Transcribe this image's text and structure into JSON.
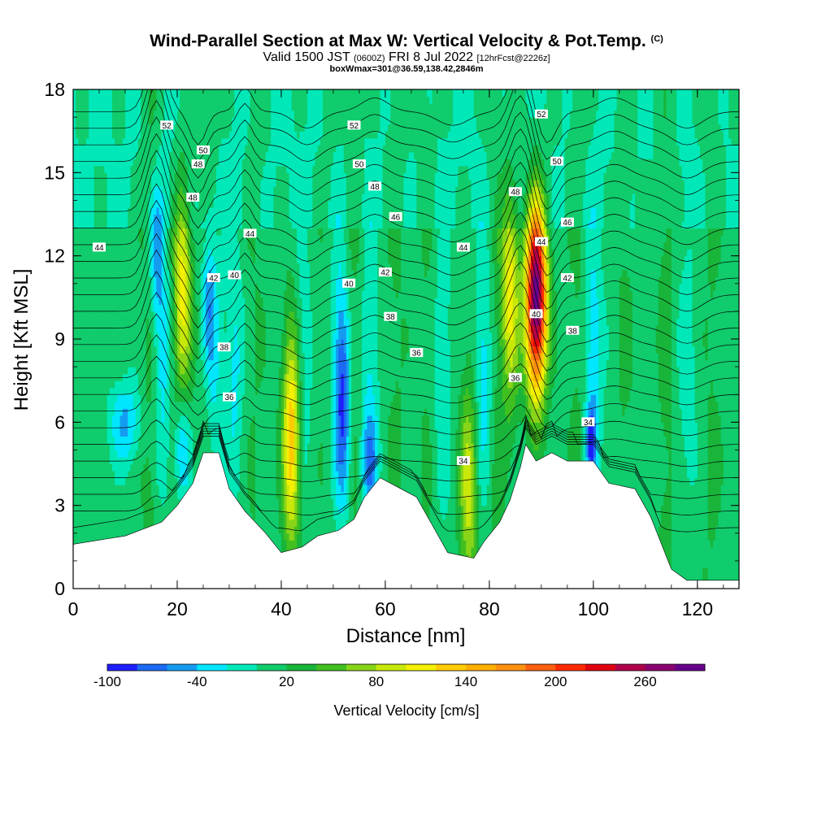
{
  "title": {
    "main": "Wind-Parallel Section at Max W: Vertical Velocity & Pot.Temp.",
    "copyright": "(C)",
    "valid_prefix": "Valid 1500 JST",
    "valid_utc": "(0600Z)",
    "valid_date": "FRI 8 Jul 2022",
    "forecast": "[12hrFcst@2226z]",
    "box": "boxWmax=301@36.59,138.42,2846m"
  },
  "chart_data": {
    "type": "heatmap",
    "xlabel": "Distance [nm]",
    "ylabel": "Height [Kft MSL]",
    "xlim": [
      0,
      128
    ],
    "ylim": [
      0,
      18
    ],
    "x_ticks": [
      0,
      20,
      40,
      60,
      80,
      100,
      120
    ],
    "y_ticks": [
      0,
      3,
      6,
      9,
      12,
      15,
      18
    ],
    "colorbar": {
      "label": "Vertical Velocity [cm/s]",
      "tick_labels": [
        "-100",
        "-40",
        "20",
        "80",
        "140",
        "200",
        "260"
      ],
      "tick_values": [
        -100,
        -40,
        20,
        80,
        140,
        200,
        260
      ],
      "colors": [
        "#1f1fff",
        "#1c6bf5",
        "#159cf0",
        "#00e6ff",
        "#00e8b8",
        "#10cc6c",
        "#18b53a",
        "#40c020",
        "#88d418",
        "#c8e80a",
        "#f4f000",
        "#ffcc00",
        "#ffb000",
        "#ff9010",
        "#ff6010",
        "#ff2a00",
        "#e00010",
        "#b0004a",
        "#8c0070",
        "#68008c"
      ]
    },
    "terrain": [
      [
        0,
        1.6
      ],
      [
        10,
        1.9
      ],
      [
        17,
        2.4
      ],
      [
        20,
        3.0
      ],
      [
        23,
        3.8
      ],
      [
        25,
        4.9
      ],
      [
        28,
        4.9
      ],
      [
        30,
        3.6
      ],
      [
        33,
        2.8
      ],
      [
        37,
        2.0
      ],
      [
        40,
        1.3
      ],
      [
        44,
        1.5
      ],
      [
        47,
        1.9
      ],
      [
        51,
        2.1
      ],
      [
        54,
        2.5
      ],
      [
        56,
        3.3
      ],
      [
        59,
        4.0
      ],
      [
        63,
        3.6
      ],
      [
        66,
        3.3
      ],
      [
        69,
        2.3
      ],
      [
        72,
        1.3
      ],
      [
        77,
        1.1
      ],
      [
        79,
        1.7
      ],
      [
        82,
        2.4
      ],
      [
        84,
        3.2
      ],
      [
        86,
        4.4
      ],
      [
        87,
        5.2
      ],
      [
        89,
        4.6
      ],
      [
        92,
        4.9
      ],
      [
        95,
        4.6
      ],
      [
        100,
        4.6
      ],
      [
        103,
        3.8
      ],
      [
        108,
        3.6
      ],
      [
        111,
        2.6
      ],
      [
        115,
        0.7
      ],
      [
        118,
        0.3
      ],
      [
        128,
        0.3
      ]
    ],
    "theta_contour_labels": [
      {
        "text": "52",
        "x": 18,
        "y": 16.7
      },
      {
        "text": "50",
        "x": 25,
        "y": 15.8
      },
      {
        "text": "48",
        "x": 24,
        "y": 15.3
      },
      {
        "text": "48",
        "x": 23,
        "y": 14.1
      },
      {
        "text": "44",
        "x": 5,
        "y": 12.3
      },
      {
        "text": "44",
        "x": 34,
        "y": 12.8
      },
      {
        "text": "42",
        "x": 27,
        "y": 11.2
      },
      {
        "text": "40",
        "x": 31,
        "y": 11.3
      },
      {
        "text": "38",
        "x": 29,
        "y": 8.7
      },
      {
        "text": "36",
        "x": 30,
        "y": 6.9
      },
      {
        "text": "52",
        "x": 54,
        "y": 16.7
      },
      {
        "text": "50",
        "x": 55,
        "y": 15.3
      },
      {
        "text": "48",
        "x": 58,
        "y": 14.5
      },
      {
        "text": "46",
        "x": 62,
        "y": 13.4
      },
      {
        "text": "42",
        "x": 60,
        "y": 11.4
      },
      {
        "text": "40",
        "x": 53,
        "y": 11.0
      },
      {
        "text": "38",
        "x": 61,
        "y": 9.8
      },
      {
        "text": "36",
        "x": 66,
        "y": 8.5
      },
      {
        "text": "44",
        "x": 75,
        "y": 12.3
      },
      {
        "text": "34",
        "x": 75,
        "y": 4.6
      },
      {
        "text": "52",
        "x": 90,
        "y": 17.1
      },
      {
        "text": "50",
        "x": 93,
        "y": 15.4
      },
      {
        "text": "48",
        "x": 85,
        "y": 14.3
      },
      {
        "text": "46",
        "x": 95,
        "y": 13.2
      },
      {
        "text": "44",
        "x": 90,
        "y": 12.5
      },
      {
        "text": "42",
        "x": 95,
        "y": 11.2
      },
      {
        "text": "40",
        "x": 89,
        "y": 9.9
      },
      {
        "text": "38",
        "x": 96,
        "y": 9.3
      },
      {
        "text": "36",
        "x": 85,
        "y": 7.6
      },
      {
        "text": "34",
        "x": 99,
        "y": 6.0
      }
    ],
    "updraft_cores": [
      {
        "x": 89,
        "y": 10.5,
        "w_max": 301
      },
      {
        "x": 42,
        "y": 5.5,
        "w_max": 140
      },
      {
        "x": 21,
        "y": 10.8,
        "w_max": 110
      },
      {
        "x": 76,
        "y": 3.5,
        "w_max": 90
      },
      {
        "x": 84,
        "y": 10.5,
        "w_max": 110
      }
    ]
  }
}
